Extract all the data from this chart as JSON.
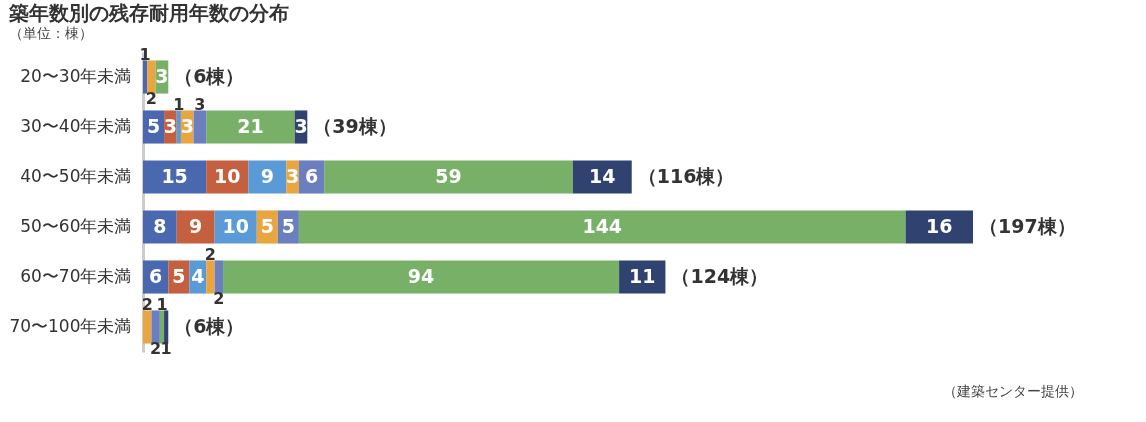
{
  "chart_data": {
    "type": "bar",
    "orientation": "horizontal",
    "stacked": true,
    "title": "築年数別の残存耐用年数の分布",
    "subtitle": "（単位：棟）",
    "categories": [
      "20〜30年未満",
      "30〜40年未満",
      "40〜50年未満",
      "50〜60年未満",
      "60〜70年未満",
      "70〜100年未満"
    ],
    "series": [
      {
        "color": "#4a68b0",
        "values": [
          1,
          5,
          15,
          8,
          6,
          null
        ]
      },
      {
        "color": "#c4603f",
        "values": [
          null,
          3,
          10,
          9,
          5,
          null
        ]
      },
      {
        "color": "#5a9ad6",
        "values": [
          null,
          1,
          9,
          10,
          4,
          null
        ]
      },
      {
        "color": "#e8a540",
        "values": [
          2,
          3,
          3,
          5,
          2,
          2
        ]
      },
      {
        "color": "#6b7fc0",
        "values": [
          null,
          3,
          6,
          5,
          2,
          2
        ]
      },
      {
        "color": "#78b068",
        "values": [
          3,
          21,
          59,
          144,
          94,
          1
        ]
      },
      {
        "color": "#2f4270",
        "values": [
          null,
          3,
          14,
          16,
          11,
          1
        ]
      }
    ],
    "data_labels": true,
    "totals": [
      "（6棟）",
      "（39棟）",
      "（116棟）",
      "（197棟）",
      "（124棟）",
      "（6棟）"
    ],
    "tick_labels": "y",
    "grid": false,
    "annotations": [
      "（建築センター提供）"
    ]
  }
}
